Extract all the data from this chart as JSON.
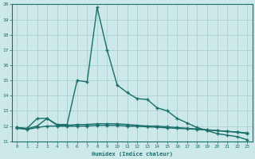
{
  "xlabel": "Humidex (Indice chaleur)",
  "ylabel": "",
  "background_color": "#cce8e8",
  "grid_color": "#b0d4d4",
  "line_color": "#1a6e6a",
  "xlim": [
    -0.5,
    23.5
  ],
  "ylim": [
    11,
    20
  ],
  "xticks": [
    0,
    1,
    2,
    3,
    4,
    5,
    6,
    7,
    8,
    9,
    10,
    11,
    12,
    13,
    14,
    15,
    16,
    17,
    18,
    19,
    20,
    21,
    22,
    23
  ],
  "yticks": [
    11,
    12,
    13,
    14,
    15,
    16,
    17,
    18,
    19,
    20
  ],
  "series": [
    {
      "x": [
        0,
        1,
        2,
        3,
        4,
        5,
        6,
        7,
        8,
        9,
        10,
        11,
        12,
        13,
        14,
        15,
        16,
        17,
        18,
        19,
        20,
        21,
        22,
        23
      ],
      "y": [
        11.9,
        11.85,
        12.5,
        12.5,
        12.1,
        12.1,
        15.0,
        14.9,
        19.8,
        17.0,
        14.7,
        14.2,
        13.8,
        13.75,
        13.2,
        13.0,
        12.5,
        12.2,
        11.9,
        11.7,
        11.5,
        11.4,
        11.3,
        11.1
      ],
      "marker": "+",
      "markersize": 3.5,
      "linewidth": 1.0
    },
    {
      "x": [
        0,
        1,
        2,
        3,
        4,
        5,
        6,
        7,
        8,
        9,
        10,
        11,
        12,
        13,
        14,
        15,
        16,
        17,
        18,
        19,
        20,
        21,
        22,
        23
      ],
      "y": [
        11.9,
        11.82,
        12.0,
        12.5,
        12.05,
        12.05,
        12.1,
        12.1,
        12.15,
        12.15,
        12.15,
        12.1,
        12.05,
        12.0,
        12.0,
        11.95,
        11.9,
        11.85,
        11.8,
        11.75,
        11.7,
        11.65,
        11.6,
        11.5
      ],
      "marker": "+",
      "markersize": 3.5,
      "linewidth": 1.0
    },
    {
      "x": [
        0,
        1,
        2,
        3,
        4,
        5,
        6,
        7,
        8,
        9,
        10,
        11,
        12,
        13,
        14,
        15,
        16,
        17,
        18,
        19,
        20,
        21,
        22,
        23
      ],
      "y": [
        11.85,
        11.78,
        11.9,
        12.0,
        12.0,
        11.98,
        12.0,
        12.0,
        12.05,
        12.05,
        12.05,
        12.0,
        11.98,
        11.95,
        11.92,
        11.88,
        11.85,
        11.82,
        11.78,
        11.74,
        11.7,
        11.65,
        11.6,
        11.55
      ],
      "marker": "+",
      "markersize": 3.5,
      "linewidth": 1.0
    }
  ]
}
